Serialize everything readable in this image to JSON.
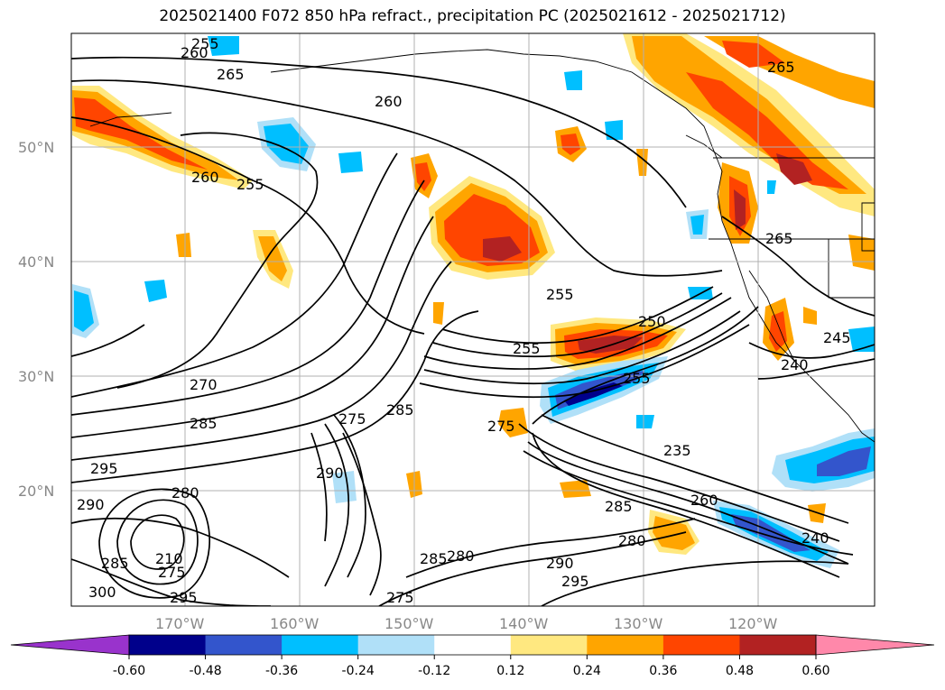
{
  "title": "2025021400 F072 850 hPa refract., precipitation PC (2025021612 - 2025021712)",
  "lat_labels": [
    "50°N",
    "40°N",
    "30°N",
    "20°N"
  ],
  "lon_labels": [
    "170°W",
    "160°W",
    "150°W",
    "140°W",
    "130°W",
    "120°W"
  ],
  "contour_labels": [
    "255",
    "260",
    "265",
    "260",
    "260",
    "255",
    "265",
    "255",
    "265",
    "270",
    "285",
    "295",
    "290",
    "280",
    "275",
    "285",
    "290",
    "250",
    "255",
    "255",
    "245",
    "240",
    "235",
    "260",
    "285",
    "275",
    "280",
    "285",
    "280",
    "275",
    "290",
    "295",
    "240",
    "210",
    "275",
    "285",
    "300",
    "295"
  ],
  "colorbar": {
    "ticks": [
      "-0.60",
      "-0.48",
      "-0.36",
      "-0.24",
      "-0.12",
      "0.12",
      "0.24",
      "0.36",
      "0.48",
      "0.60"
    ],
    "colors": [
      "#9933cc",
      "#00008b",
      "#3355cc",
      "#00bfff",
      "#b0e0f8",
      "#ffffff",
      "#ffe880",
      "#ffa500",
      "#ff4500",
      "#b22222",
      "#ff88aa"
    ]
  }
}
